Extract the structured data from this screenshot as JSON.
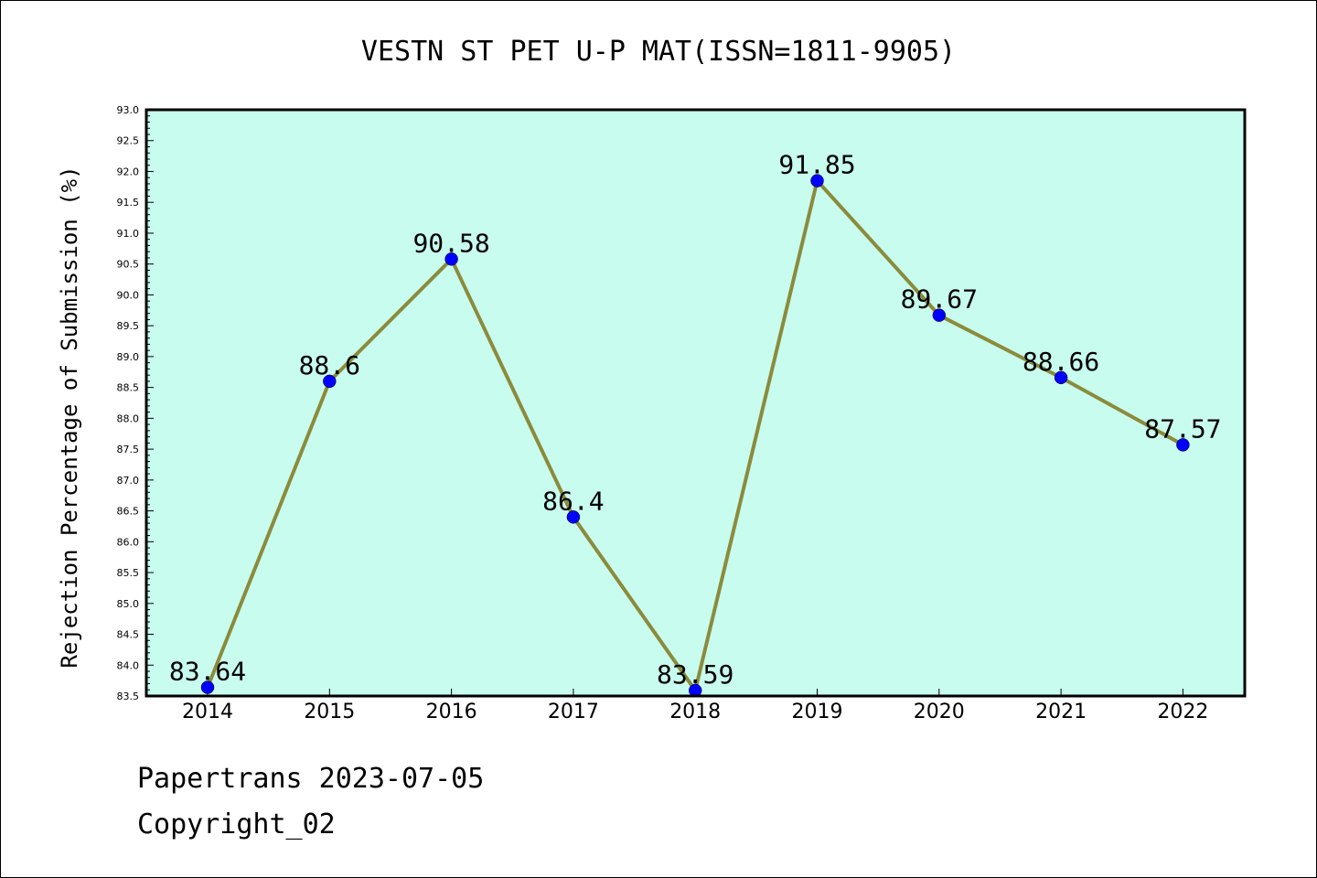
{
  "chart_data": {
    "type": "line",
    "title": "VESTN ST PET U-P MAT(ISSN=1811-9905)",
    "xlabel": "",
    "ylabel": "Rejection Percentage of Submission (%)",
    "categories": [
      "2014",
      "2015",
      "2016",
      "2017",
      "2018",
      "2019",
      "2020",
      "2021",
      "2022"
    ],
    "series": [
      {
        "values": [
          83.64,
          88.6,
          90.58,
          86.4,
          83.59,
          91.85,
          89.67,
          88.66,
          87.57
        ],
        "labels": [
          "83.64",
          "88.6",
          "90.58",
          "86.4",
          "83.59",
          "91.85",
          "89.67",
          "88.66",
          "87.57"
        ],
        "line_color": "#8b8b3c",
        "marker_color": "#0000ff"
      }
    ],
    "ylim": [
      83.5,
      93.0
    ],
    "y_ticks": [
      "83.5",
      "84.0",
      "84.5",
      "85.0",
      "85.5",
      "86.0",
      "86.5",
      "87.0",
      "87.5",
      "88.0",
      "88.5",
      "89.0",
      "89.5",
      "90.0",
      "90.5",
      "91.0",
      "91.5",
      "92.0",
      "92.5",
      "93.0"
    ],
    "grid": false,
    "plot_background": "#c8fcee"
  },
  "footer": {
    "line1": "Papertrans 2023-07-05",
    "line2": "Copyright_02"
  }
}
